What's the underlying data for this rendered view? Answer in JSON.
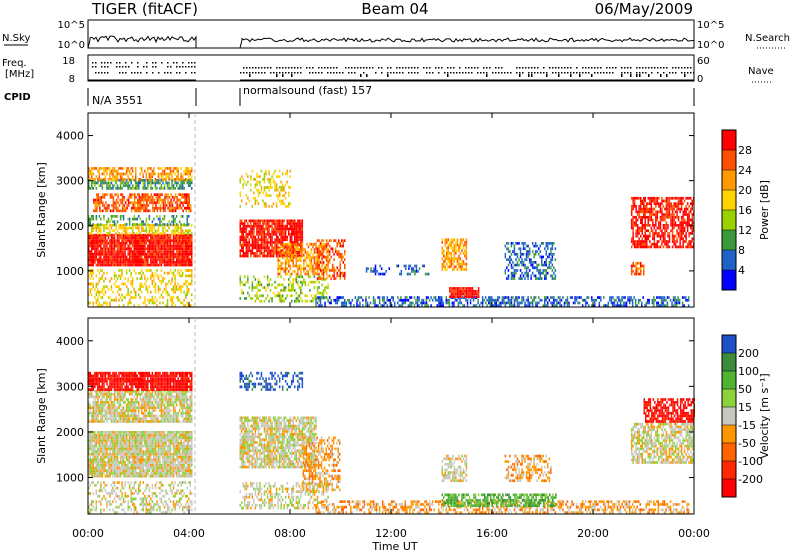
{
  "header": {
    "radar": "TIGER (fitACF)",
    "beam": "Beam 04",
    "date": "06/May/2009"
  },
  "strip_labels": {
    "nsky": "N.Sky",
    "nsky_ticks": [
      "10^5",
      "10^0"
    ],
    "nsearch": "N.Search",
    "nsearch_ticks": [
      "10^5",
      "10^0"
    ],
    "freq_label_1": "Freq.",
    "freq_label_2": "[MHz]",
    "freq_ticks": [
      "18",
      "8"
    ],
    "nave": "Nave",
    "nave_ticks": [
      "60",
      "0"
    ],
    "cpid": "CPID",
    "cpid_1": "N/A 3551",
    "cpid_2": "normalsound (fast) 157"
  },
  "chart_data": [
    {
      "type": "heatmap",
      "name": "power",
      "ylabel": "Slant Range [km]",
      "yticks": [
        "4000",
        "3000",
        "2000",
        "1000"
      ],
      "ylim": [
        200,
        4500
      ],
      "xlim": [
        0,
        24
      ],
      "colorbar": {
        "label": "Power [dB]",
        "ticks": [
          "28",
          "24",
          "20",
          "16",
          "12",
          "8",
          "4"
        ],
        "colors": [
          "#ff0000",
          "#ff5000",
          "#ff9a00",
          "#ffd200",
          "#9ad200",
          "#3c9a3c",
          "#1e64c8",
          "#0000ff"
        ]
      },
      "blobs": [
        {
          "t0": 0.0,
          "t1": 4.1,
          "r0": 1100,
          "r1": 1800,
          "c": 0,
          "d": 0.95
        },
        {
          "t0": 0.0,
          "t1": 4.1,
          "r0": 1800,
          "r1": 2000,
          "c": 3,
          "d": 0.6
        },
        {
          "t0": 0.0,
          "t1": 4.1,
          "r0": 2000,
          "r1": 2200,
          "c": 5,
          "d": 0.4
        },
        {
          "t0": 0.2,
          "t1": 4.1,
          "r0": 2300,
          "r1": 2700,
          "c": 1,
          "d": 0.7
        },
        {
          "t0": 0.0,
          "t1": 4.1,
          "r0": 2800,
          "r1": 3000,
          "c": 5,
          "d": 0.7
        },
        {
          "t0": 0.0,
          "t1": 4.1,
          "r0": 3000,
          "r1": 3250,
          "c": 2,
          "d": 0.6
        },
        {
          "t0": 0.0,
          "t1": 4.1,
          "r0": 200,
          "r1": 1000,
          "c": 3,
          "d": 0.35
        },
        {
          "t0": 6.0,
          "t1": 8.5,
          "r0": 1300,
          "r1": 2100,
          "c": 0,
          "d": 0.85
        },
        {
          "t0": 7.5,
          "t1": 9.5,
          "r0": 900,
          "r1": 1600,
          "c": 2,
          "d": 0.6
        },
        {
          "t0": 6.0,
          "t1": 8.0,
          "r0": 2400,
          "r1": 3200,
          "c": 3,
          "d": 0.35
        },
        {
          "t0": 6.0,
          "t1": 9.5,
          "r0": 300,
          "r1": 900,
          "c": 4,
          "d": 0.35
        },
        {
          "t0": 9.0,
          "t1": 10.2,
          "r0": 800,
          "r1": 1700,
          "c": 1,
          "d": 0.5
        },
        {
          "t0": 9.0,
          "t1": 23.8,
          "r0": 200,
          "r1": 400,
          "c": 6,
          "d": 0.55
        },
        {
          "t0": 14.0,
          "t1": 15.0,
          "r0": 1000,
          "r1": 1700,
          "c": 2,
          "d": 0.7
        },
        {
          "t0": 14.3,
          "t1": 15.5,
          "r0": 400,
          "r1": 600,
          "c": 0,
          "d": 0.9
        },
        {
          "t0": 16.5,
          "t1": 18.5,
          "r0": 800,
          "r1": 1600,
          "c": 6,
          "d": 0.5
        },
        {
          "t0": 11.0,
          "t1": 13.5,
          "r0": 900,
          "r1": 1100,
          "c": 6,
          "d": 0.3
        },
        {
          "t0": 21.5,
          "t1": 24.0,
          "r0": 1500,
          "r1": 2600,
          "c": 0,
          "d": 0.7
        },
        {
          "t0": 21.5,
          "t1": 22.0,
          "r0": 900,
          "r1": 1200,
          "c": 1,
          "d": 0.7
        }
      ]
    },
    {
      "type": "heatmap",
      "name": "velocity",
      "ylabel": "Slant Range [km]",
      "yticks": [
        "4000",
        "3000",
        "2000",
        "1000"
      ],
      "ylim": [
        200,
        4500
      ],
      "xlim": [
        0,
        24
      ],
      "colorbar": {
        "label": "Velocity [m s⁻¹]",
        "ticks": [
          "200",
          "100",
          "50",
          "15",
          "-15",
          "-50",
          "-100",
          "-200"
        ],
        "colors": [
          "#1e50c8",
          "#3c8c3c",
          "#50b432",
          "#8cd23c",
          "#c8c8be",
          "#ff9600",
          "#ff6400",
          "#ff2800",
          "#ff0000"
        ]
      },
      "blobs": [
        {
          "t0": 0.0,
          "t1": 4.1,
          "r0": 1000,
          "r1": 2000,
          "c": 4,
          "d": 0.95
        },
        {
          "t0": 0.0,
          "t1": 4.1,
          "r0": 2200,
          "r1": 2900,
          "c": 4,
          "d": 0.8
        },
        {
          "t0": 0.0,
          "t1": 4.1,
          "r0": 2900,
          "r1": 3300,
          "c": 8,
          "d": 0.9
        },
        {
          "t0": 0.0,
          "t1": 4.1,
          "r0": 200,
          "r1": 900,
          "c": 4,
          "d": 0.4
        },
        {
          "t0": 6.0,
          "t1": 9.0,
          "r0": 1200,
          "r1": 2300,
          "c": 4,
          "d": 0.8
        },
        {
          "t0": 8.5,
          "t1": 10.0,
          "r0": 700,
          "r1": 1900,
          "c": 5,
          "d": 0.5
        },
        {
          "t0": 6.0,
          "t1": 8.5,
          "r0": 2900,
          "r1": 3300,
          "c": 0,
          "d": 0.4
        },
        {
          "t0": 6.0,
          "t1": 9.5,
          "r0": 300,
          "r1": 900,
          "c": 4,
          "d": 0.45
        },
        {
          "t0": 9.0,
          "t1": 23.8,
          "r0": 200,
          "r1": 450,
          "c": 5,
          "d": 0.5
        },
        {
          "t0": 14.0,
          "t1": 18.5,
          "r0": 350,
          "r1": 650,
          "c": 2,
          "d": 0.7
        },
        {
          "t0": 14.0,
          "t1": 15.0,
          "r0": 900,
          "r1": 1500,
          "c": 4,
          "d": 0.6
        },
        {
          "t0": 16.5,
          "t1": 18.3,
          "r0": 900,
          "r1": 1500,
          "c": 5,
          "d": 0.45
        },
        {
          "t0": 21.5,
          "t1": 24.0,
          "r0": 1300,
          "r1": 2200,
          "c": 4,
          "d": 0.7
        },
        {
          "t0": 22.0,
          "t1": 24.0,
          "r0": 2200,
          "r1": 2700,
          "c": 8,
          "d": 0.7
        }
      ]
    }
  ],
  "x_axis": {
    "ticks": [
      "00:00",
      "04:00",
      "08:00",
      "12:00",
      "16:00",
      "20:00",
      "00:00"
    ],
    "label": "Time UT"
  }
}
